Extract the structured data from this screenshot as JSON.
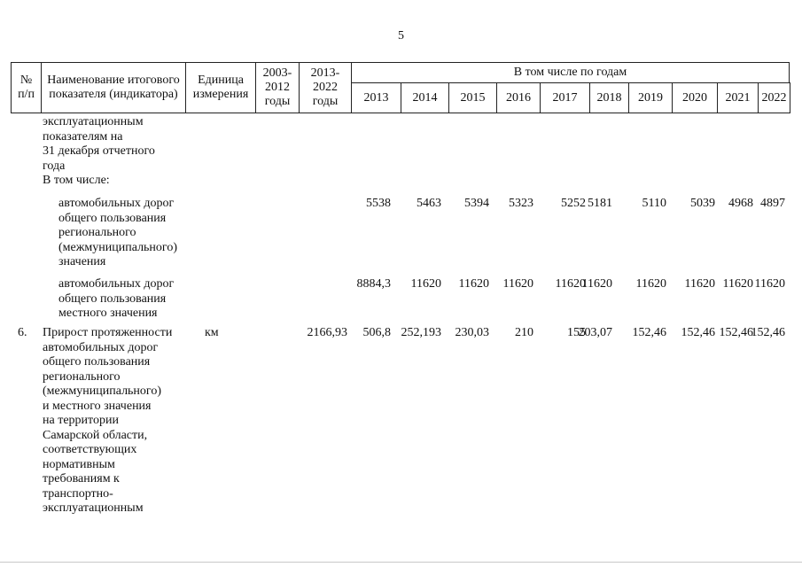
{
  "page_number": "5",
  "header": {
    "no": "№ п/п",
    "name": "Наименование итогового показателя (индикатора)",
    "unit": "Единица измерения",
    "period1": "2003-2012 годы",
    "period2": "2013-2022 годы",
    "years_group": "В том числе по годам",
    "years": [
      "2013",
      "2014",
      "2015",
      "2016",
      "2017",
      "2018",
      "2019",
      "2020",
      "2021",
      "2022"
    ]
  },
  "rows": [
    {
      "no": "",
      "name_lines": [
        "эксплуатационным",
        "показателям на",
        "31 декабря отчетного",
        "года",
        "В том числе:"
      ],
      "unit": "",
      "total": "",
      "values": [
        "",
        "",
        "",
        "",
        "",
        "",
        "",
        "",
        "",
        ""
      ]
    },
    {
      "no": "",
      "name_lines": [
        "автомобильных дорог",
        "общего пользования",
        "регионального",
        "(межмуниципального)",
        "значения"
      ],
      "unit": "",
      "total": "",
      "values": [
        "5538",
        "5463",
        "5394",
        "5323",
        "5252",
        "5181",
        "5110",
        "5039",
        "4968",
        "4897"
      ]
    },
    {
      "no": "",
      "name_lines": [
        "автомобильных дорог",
        "общего пользования",
        "местного значения"
      ],
      "unit": "",
      "total": "",
      "values": [
        "8884,3",
        "11620",
        "11620",
        "11620",
        "11620",
        "11620",
        "11620",
        "11620",
        "11620",
        "11620"
      ]
    },
    {
      "no": "6.",
      "name_lines": [
        "Прирост протяженности",
        "автомобильных дорог",
        "общего пользования",
        "регионального",
        "(межмуниципального)",
        "и местного значения",
        "на территории",
        "Самарской области,",
        "соответствующих",
        "нормативным",
        "требованиям к",
        "транспортно-",
        "эксплуатационным"
      ],
      "unit": "км",
      "total": "2166,93",
      "values": [
        "506,8",
        "252,193",
        "230,03",
        "210",
        "155",
        "203,07",
        "152,46",
        "152,46",
        "152,46",
        "152,46"
      ]
    }
  ]
}
